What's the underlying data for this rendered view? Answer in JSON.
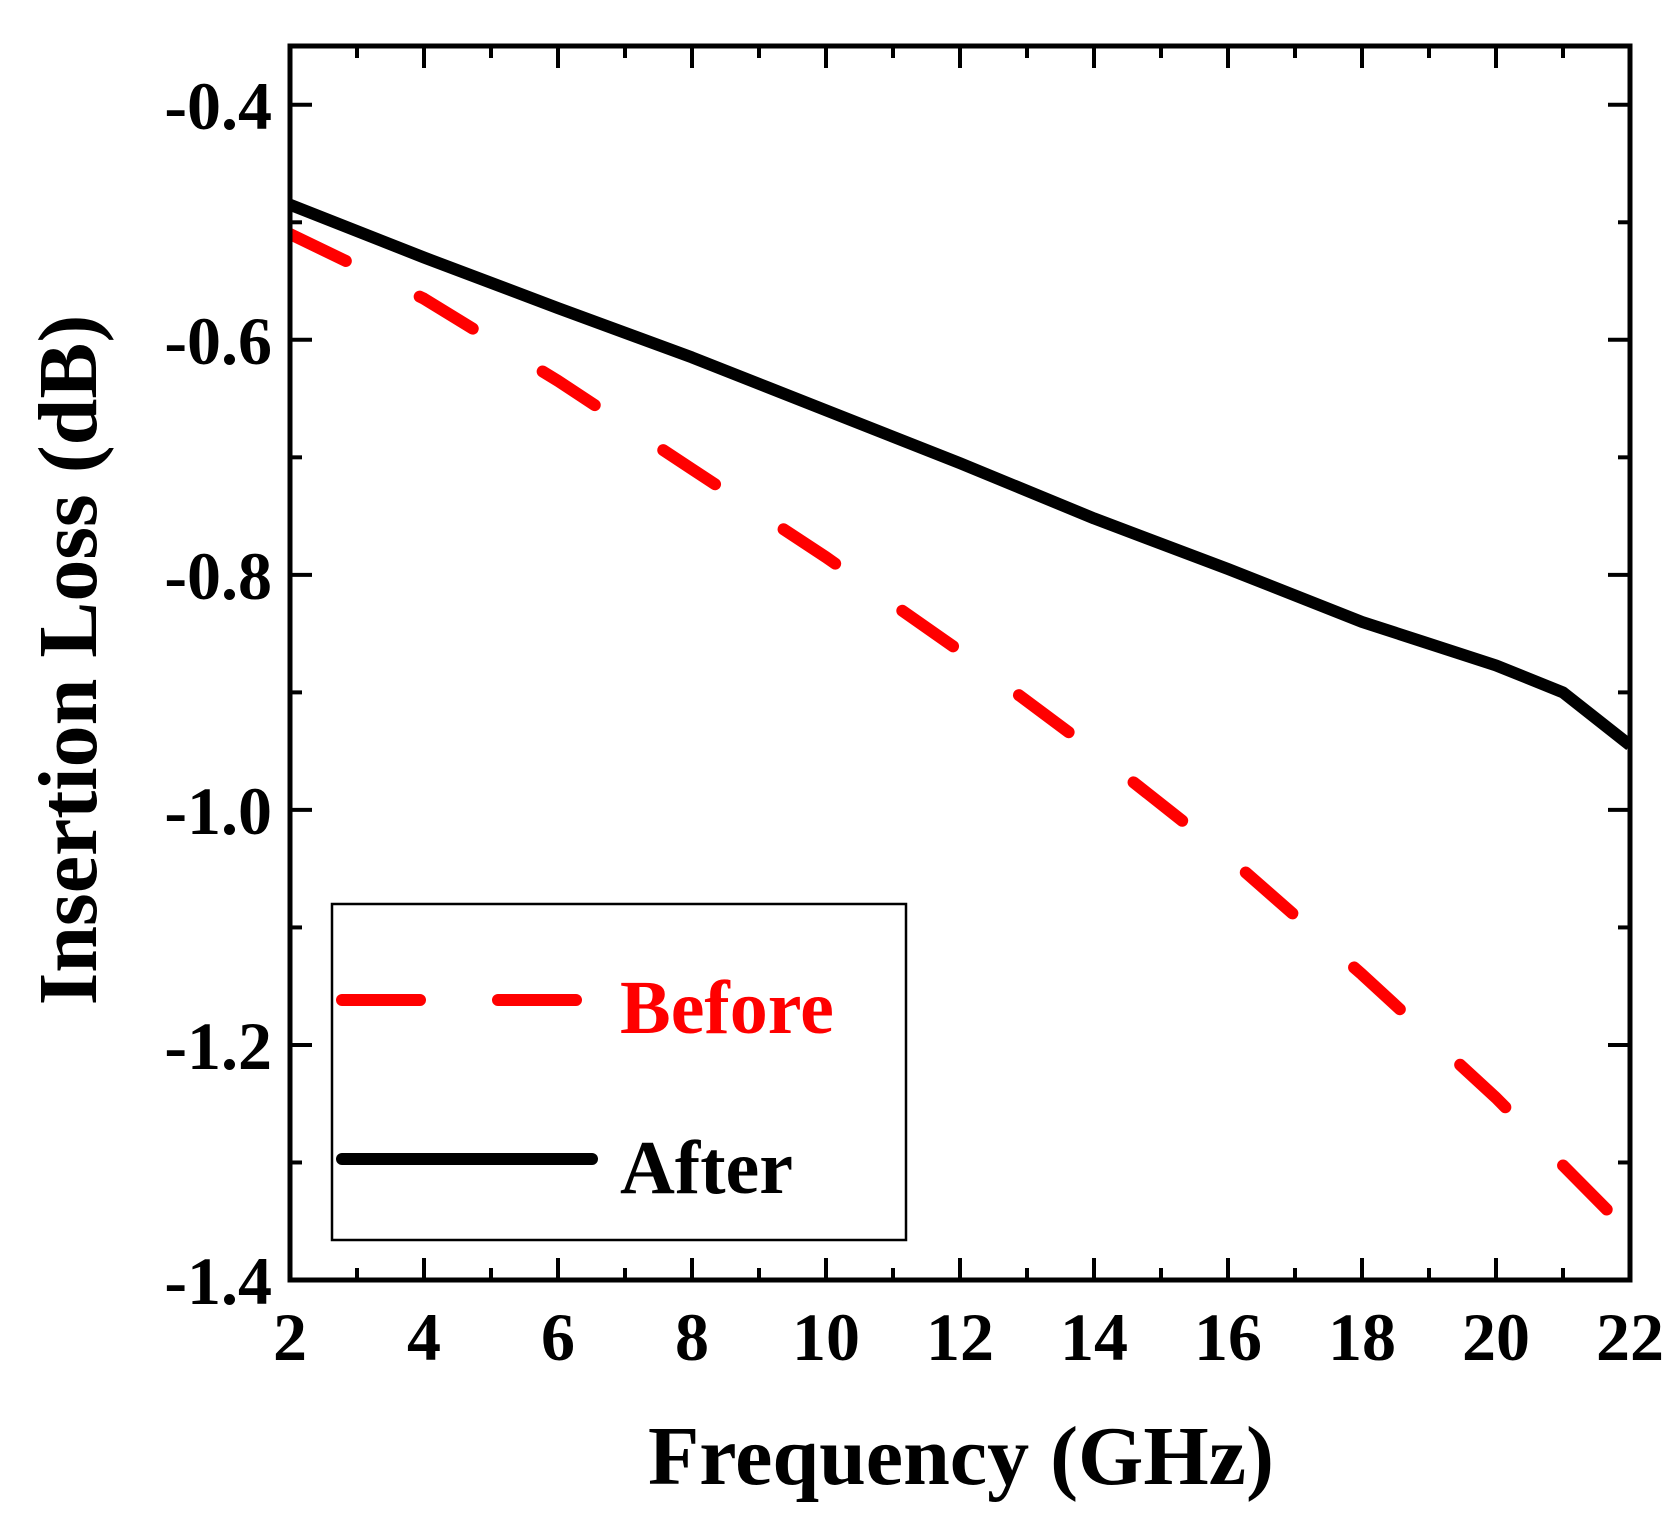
{
  "chart_data": {
    "type": "line",
    "title": "",
    "xlabel": "Frequency (GHz)",
    "ylabel": "Insertion Loss (dB)",
    "xlim": [
      2,
      22
    ],
    "ylim": [
      -1.4,
      -0.35
    ],
    "xticks": [
      2,
      4,
      6,
      8,
      10,
      12,
      14,
      16,
      18,
      20,
      22
    ],
    "xtick_labels": [
      "2",
      "4",
      "6",
      "8",
      "10",
      "12",
      "14",
      "16",
      "18",
      "20",
      "22"
    ],
    "yticks": [
      -1.4,
      -1.2,
      -1.0,
      -0.8,
      -0.6,
      -0.4
    ],
    "ytick_labels": [
      "-1.4",
      "-1.2",
      "-1.0",
      "-0.8",
      "-0.6",
      "-0.4"
    ],
    "legend_position": "bottom-left",
    "series": [
      {
        "name": "Before",
        "color": "#ff0000",
        "style": "dashed",
        "x": [
          2,
          4,
          6,
          8,
          10,
          12,
          14,
          16,
          18,
          20,
          22
        ],
        "values": [
          -0.51,
          -0.565,
          -0.635,
          -0.71,
          -0.785,
          -0.865,
          -0.95,
          -1.04,
          -1.14,
          -1.245,
          -1.36
        ]
      },
      {
        "name": "After",
        "color": "#000000",
        "style": "solid",
        "x": [
          2,
          4,
          6,
          8,
          10,
          12,
          14,
          16,
          18,
          20,
          21,
          22
        ],
        "values": [
          -0.485,
          -0.53,
          -0.573,
          -0.615,
          -0.66,
          -0.705,
          -0.752,
          -0.795,
          -0.84,
          -0.877,
          -0.9,
          -0.945
        ]
      }
    ]
  }
}
